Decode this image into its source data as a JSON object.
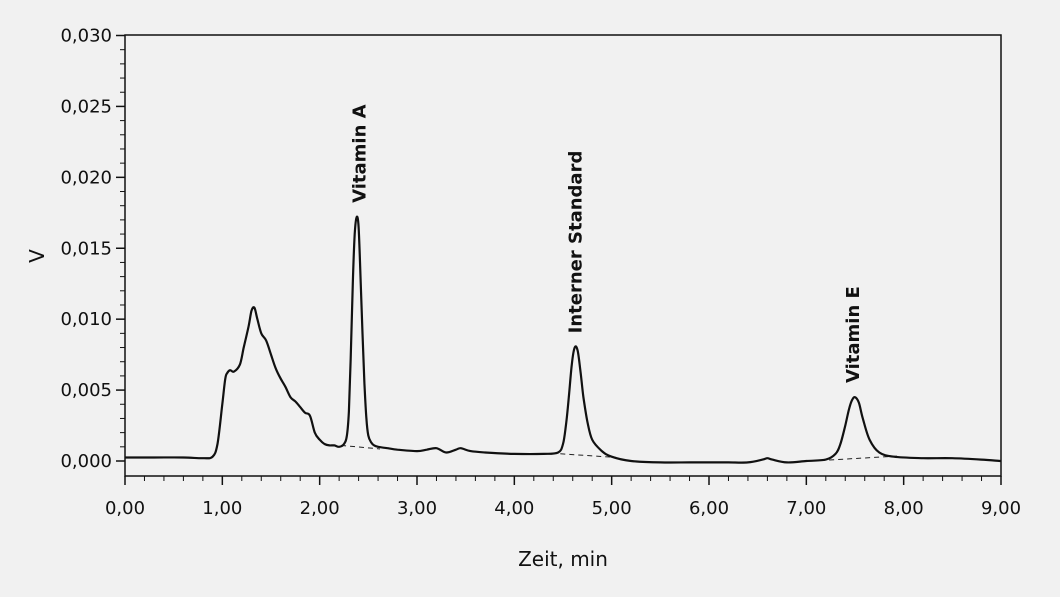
{
  "background_color": "#f1f1f1",
  "line_color": "#111111",
  "chart_data": {
    "type": "line",
    "title": "",
    "xlabel": "Zeit, min",
    "ylabel": "V",
    "xlim": [
      0,
      9
    ],
    "ylim": [
      -0.001,
      0.03
    ],
    "grid": false,
    "legend": "none",
    "x_ticks": [
      0,
      1,
      2,
      3,
      4,
      5,
      6,
      7,
      8,
      9
    ],
    "x_tick_labels": [
      "0,00",
      "1,00",
      "2,00",
      "3,00",
      "4,00",
      "5,00",
      "6,00",
      "7,00",
      "8,00",
      "9,00"
    ],
    "y_ticks": [
      0,
      0.005,
      0.01,
      0.015,
      0.02,
      0.025,
      0.03
    ],
    "y_tick_labels": [
      "0,000",
      "0,005",
      "0,010",
      "0,015",
      "0,020",
      "0,025",
      "0,030"
    ],
    "series": [
      {
        "x": [
          0.0,
          0.3,
          0.6,
          0.8,
          0.9,
          0.95,
          1.0,
          1.03,
          1.05,
          1.08,
          1.12,
          1.18,
          1.22,
          1.27,
          1.3,
          1.33,
          1.36,
          1.4,
          1.45,
          1.5,
          1.55,
          1.6,
          1.65,
          1.7,
          1.75,
          1.8,
          1.85,
          1.9,
          1.95,
          2.0,
          2.05,
          2.1,
          2.15,
          2.2,
          2.25,
          2.28,
          2.3,
          2.32,
          2.34,
          2.36,
          2.38,
          2.4,
          2.42,
          2.44,
          2.46,
          2.48,
          2.5,
          2.53,
          2.56,
          2.6,
          2.7,
          2.8,
          3.0,
          3.1,
          3.2,
          3.3,
          3.4,
          3.45,
          3.55,
          3.7,
          4.0,
          4.3,
          4.45,
          4.5,
          4.53,
          4.56,
          4.59,
          4.62,
          4.65,
          4.68,
          4.71,
          4.75,
          4.8,
          4.9,
          5.0,
          5.2,
          5.5,
          5.8,
          6.0,
          6.2,
          6.4,
          6.55,
          6.6,
          6.65,
          6.8,
          7.0,
          7.2,
          7.3,
          7.35,
          7.4,
          7.44,
          7.47,
          7.5,
          7.54,
          7.58,
          7.65,
          7.75,
          7.9,
          8.2,
          8.5,
          8.8,
          9.0
        ],
        "y": [
          0.00025,
          0.00025,
          0.00025,
          0.0002,
          0.0003,
          0.0012,
          0.004,
          0.0058,
          0.0062,
          0.0064,
          0.0063,
          0.0068,
          0.008,
          0.0095,
          0.0106,
          0.0108,
          0.01,
          0.009,
          0.0085,
          0.0075,
          0.0065,
          0.0058,
          0.0052,
          0.0045,
          0.0042,
          0.0038,
          0.0034,
          0.0032,
          0.002,
          0.0015,
          0.0012,
          0.0011,
          0.0011,
          0.001,
          0.0012,
          0.0018,
          0.0035,
          0.0075,
          0.0125,
          0.016,
          0.0172,
          0.0165,
          0.013,
          0.009,
          0.0055,
          0.003,
          0.0018,
          0.0013,
          0.0011,
          0.001,
          0.0009,
          0.0008,
          0.0007,
          0.0008,
          0.0009,
          0.0006,
          0.0008,
          0.0009,
          0.0007,
          0.0006,
          0.0005,
          0.0005,
          0.0006,
          0.0012,
          0.0025,
          0.0045,
          0.0068,
          0.008,
          0.0078,
          0.0063,
          0.0045,
          0.0028,
          0.0015,
          0.0007,
          0.0003,
          0.0,
          -0.0001,
          -0.0001,
          -0.0001,
          -0.0001,
          -0.0001,
          0.0001,
          0.0002,
          0.0001,
          -0.0001,
          0.0,
          0.0001,
          0.0005,
          0.0012,
          0.0025,
          0.0037,
          0.0043,
          0.0045,
          0.0041,
          0.003,
          0.0015,
          0.0006,
          0.0003,
          0.0002,
          0.0002,
          0.0001,
          0.0
        ]
      }
    ],
    "baselines": [
      {
        "x": [
          2.22,
          2.62
        ],
        "y": [
          0.0011,
          0.00085
        ]
      },
      {
        "x": [
          4.38,
          5.05
        ],
        "y": [
          0.00055,
          0.00025
        ]
      },
      {
        "x": [
          7.05,
          7.95
        ],
        "y": [
          0.0,
          0.00035
        ]
      }
    ],
    "annotations": [
      {
        "text": "Vitamin A",
        "x": 2.4,
        "y": 0.0182
      },
      {
        "text": "Interner Standard",
        "x": 4.62,
        "y": 0.009
      },
      {
        "text": "Vitamin E",
        "x": 7.47,
        "y": 0.0055
      }
    ]
  }
}
